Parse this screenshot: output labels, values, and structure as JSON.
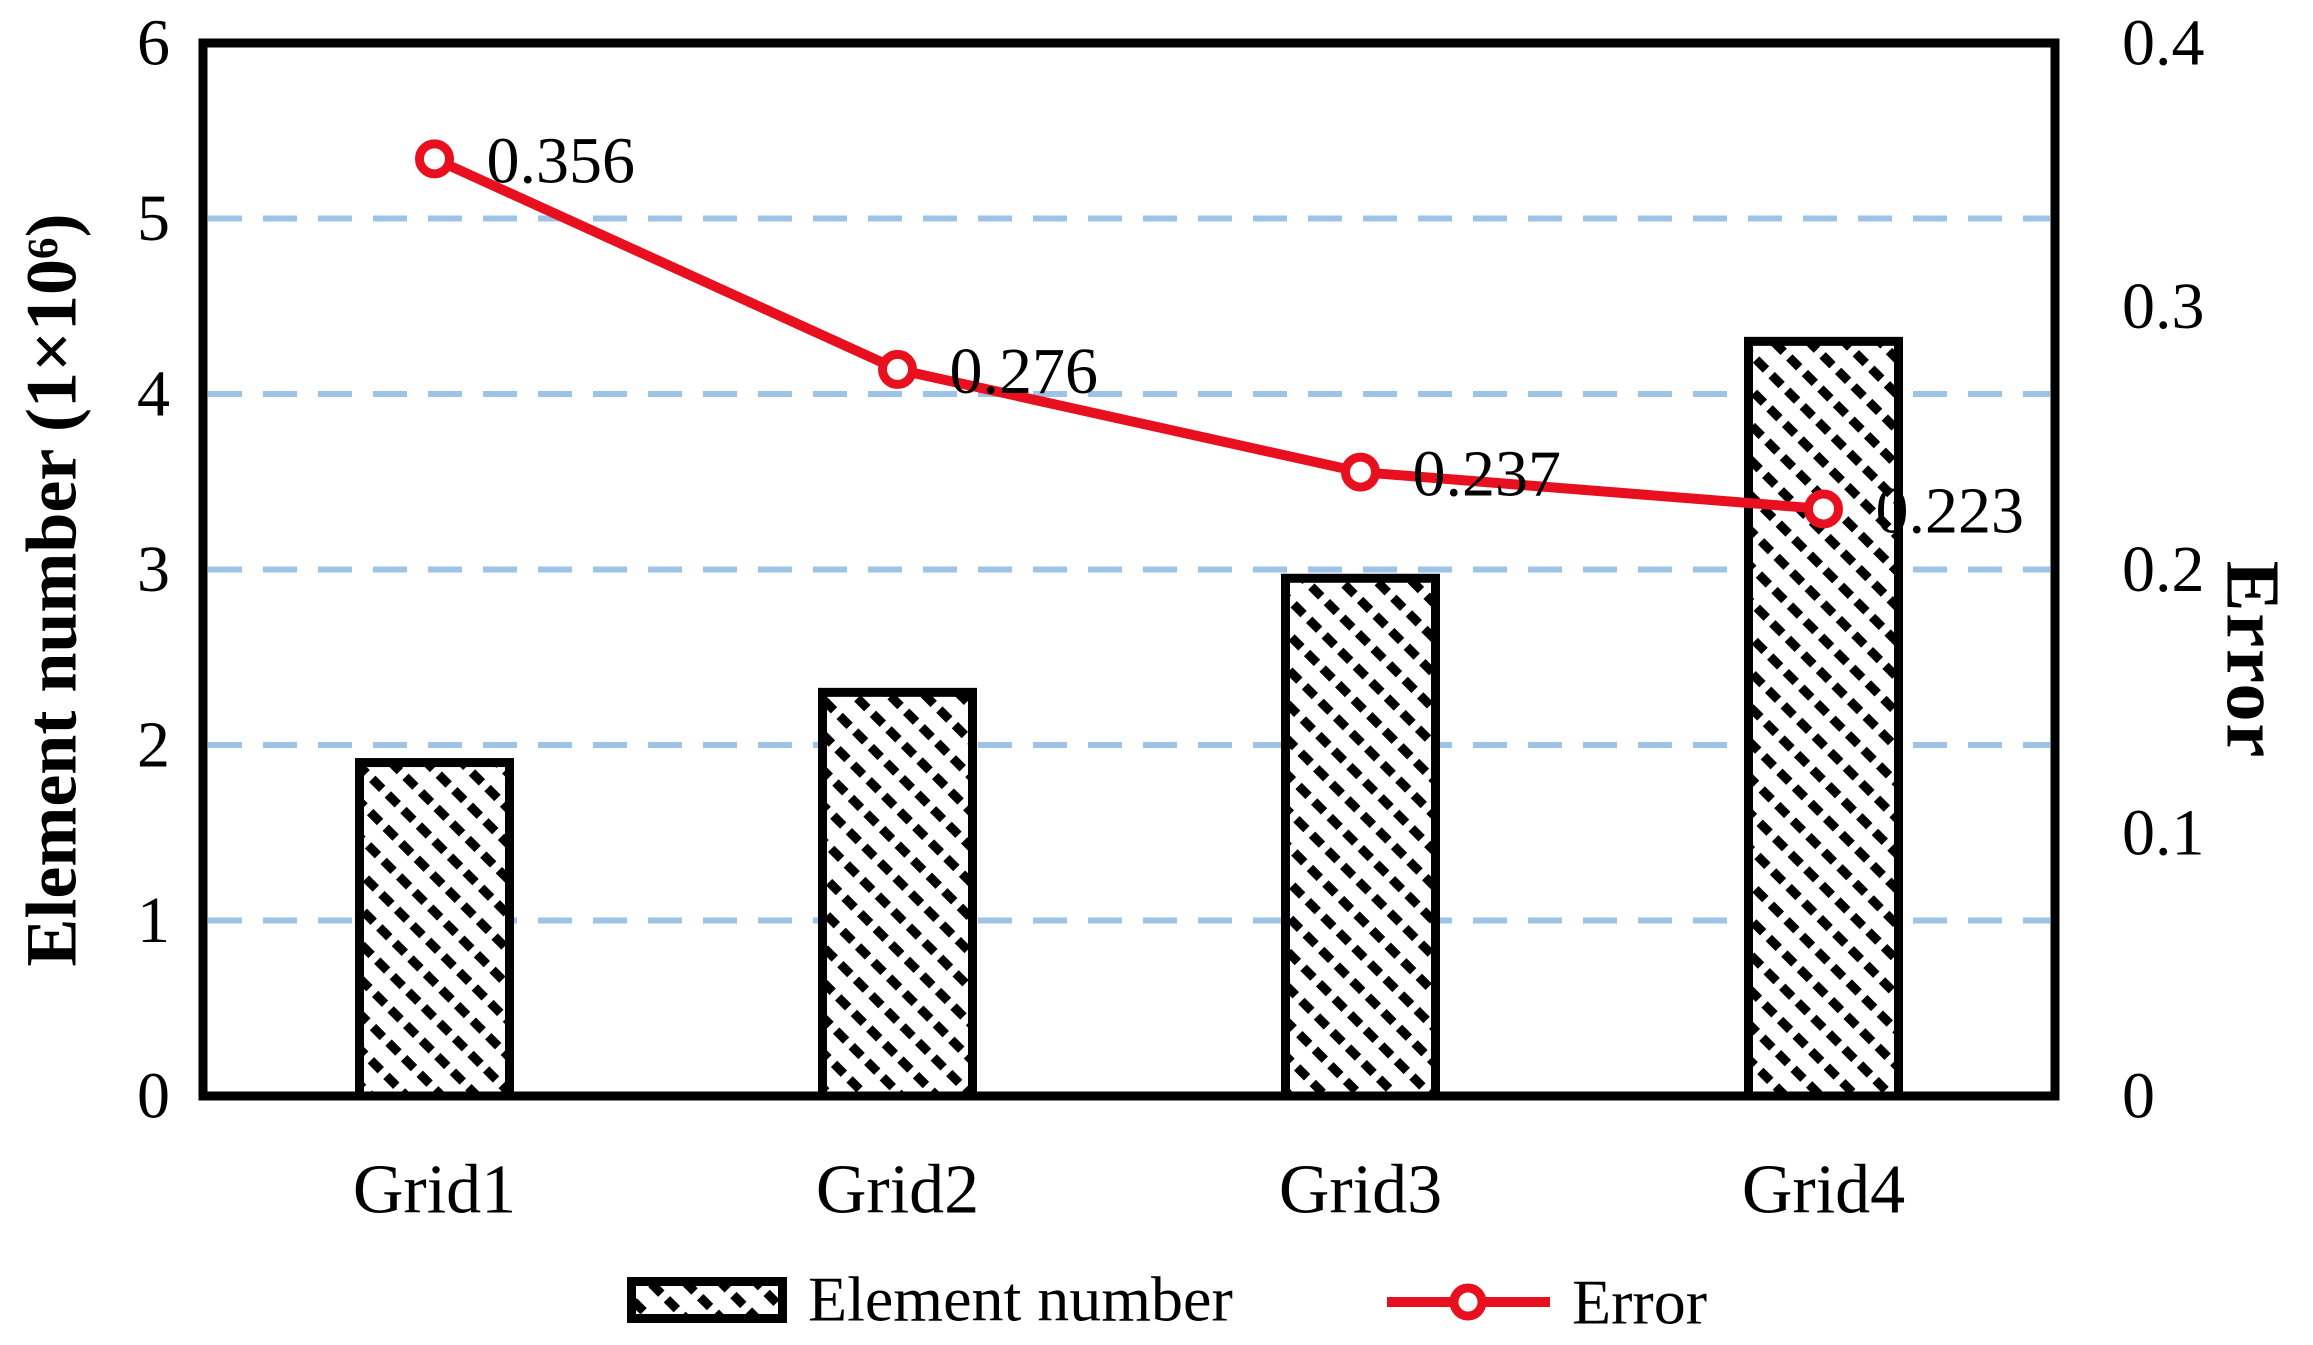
{
  "chart_data": {
    "type": "bar+line dual-axis combo",
    "categories": [
      "Grid1",
      "Grid2",
      "Grid3",
      "Grid4"
    ],
    "series": [
      {
        "name": "Element number",
        "type": "bar",
        "axis": "left",
        "values": [
          1.9,
          2.3,
          2.95,
          4.3
        ],
        "style": "white fill with black diagonal hatch, black outline"
      },
      {
        "name": "Error",
        "type": "line",
        "axis": "right",
        "values": [
          0.356,
          0.276,
          0.237,
          0.223
        ],
        "point_labels": [
          "0.356",
          "0.276",
          "0.237",
          "0.223"
        ],
        "marker": "open-circle"
      }
    ],
    "left_axis": {
      "label": "Element number (1×10⁶)",
      "min": 0,
      "max": 6,
      "tick_step": 1,
      "ticks": [
        "0",
        "1",
        "2",
        "3",
        "4",
        "5",
        "6"
      ]
    },
    "right_axis": {
      "label": "Error",
      "min": 0,
      "max": 0.4,
      "tick_step": 0.1,
      "ticks": [
        "0",
        "0.1",
        "0.2",
        "0.3",
        "0.4"
      ]
    },
    "gridlines": {
      "orientation": "horizontal",
      "style": "dashed",
      "at_left_axis_values": [
        1,
        2,
        3,
        4,
        5
      ]
    },
    "legend": {
      "position": "bottom-center",
      "items": [
        {
          "label": "Element number",
          "swatch": "hatched-box"
        },
        {
          "label": "Error",
          "swatch": "red-line-with-open-circle"
        }
      ]
    },
    "colors": {
      "line": "#E8101E",
      "gridline": "#9DC3E6",
      "bar_outline": "#000000",
      "bar_fill": "#FFFFFF",
      "text": "#000000",
      "background": "#FFFFFF"
    }
  }
}
